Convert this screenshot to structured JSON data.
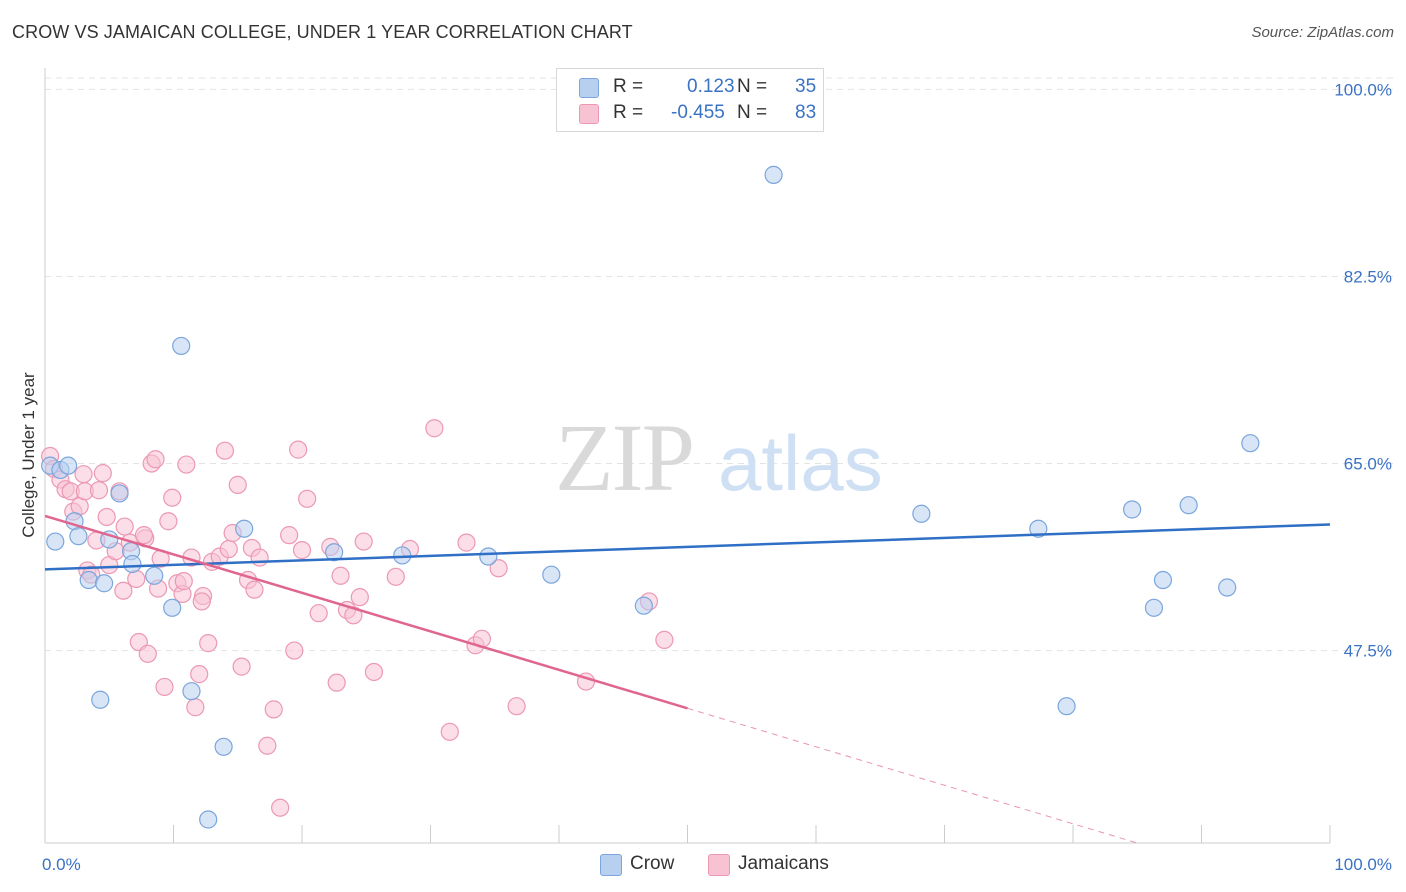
{
  "title": "CROW VS JAMAICAN COLLEGE, UNDER 1 YEAR CORRELATION CHART",
  "source": "Source: ZipAtlas.com",
  "watermark": {
    "zip": "ZIP",
    "atlas": "atlas"
  },
  "legend": {
    "rows": [
      {
        "r_label": "R =",
        "r_value": "0.123",
        "n_label": "N =",
        "n_value": "35"
      },
      {
        "r_label": "R =",
        "r_value": "-0.455",
        "n_label": "N =",
        "n_value": "83"
      }
    ]
  },
  "bottom_legend": {
    "crow": "Crow",
    "jamaicans": "Jamaicans"
  },
  "colors": {
    "crow_fill": "#b8d0f0",
    "crow_stroke": "#7aa6dc",
    "crow_line": "#2f6fc6",
    "jam_fill": "#f7c3d3",
    "jam_stroke": "#ec98b4",
    "jam_line": "#e0668f",
    "grid": "#e3e3e3",
    "tick_label": "#3a72c4"
  },
  "chart_data": {
    "type": "scatter",
    "title": "CROW VS JAMAICAN COLLEGE, UNDER 1 YEAR CORRELATION CHART",
    "xlabel": "",
    "ylabel": "College, Under 1 year",
    "xlim": [
      0,
      100
    ],
    "ylim": [
      29.5,
      102
    ],
    "x_tick_labels": [
      "0.0%",
      "100.0%"
    ],
    "y_ticks": [
      47.5,
      65.0,
      82.5,
      100.0
    ],
    "y_tick_labels": [
      "47.5%",
      "65.0%",
      "82.5%",
      "100.0%"
    ],
    "grid": true,
    "legend_position": "top-center",
    "series": [
      {
        "name": "Crow",
        "R": 0.123,
        "N": 35,
        "trend": {
          "x0": 0,
          "y0": 55.1,
          "x1": 100,
          "y1": 59.3
        },
        "points": [
          [
            0.4,
            64.8
          ],
          [
            1.2,
            64.4
          ],
          [
            1.8,
            64.8
          ],
          [
            0.8,
            57.7
          ],
          [
            2.3,
            59.6
          ],
          [
            2.6,
            58.2
          ],
          [
            3.4,
            54.1
          ],
          [
            4.6,
            53.8
          ],
          [
            5.0,
            57.9
          ],
          [
            5.8,
            62.2
          ],
          [
            6.7,
            56.8
          ],
          [
            6.8,
            55.6
          ],
          [
            8.5,
            54.5
          ],
          [
            9.9,
            51.5
          ],
          [
            10.6,
            76.0
          ],
          [
            11.4,
            43.7
          ],
          [
            12.7,
            31.7
          ],
          [
            13.9,
            38.5
          ],
          [
            15.5,
            58.9
          ],
          [
            22.5,
            56.7
          ],
          [
            27.8,
            56.4
          ],
          [
            34.5,
            56.3
          ],
          [
            39.4,
            54.6
          ],
          [
            46.6,
            51.7
          ],
          [
            56.7,
            92.0
          ],
          [
            68.2,
            60.3
          ],
          [
            77.3,
            58.9
          ],
          [
            79.5,
            42.3
          ],
          [
            84.6,
            60.7
          ],
          [
            86.3,
            51.5
          ],
          [
            87.0,
            54.1
          ],
          [
            89.0,
            61.1
          ],
          [
            92.0,
            53.4
          ],
          [
            93.8,
            66.9
          ],
          [
            4.3,
            42.9
          ]
        ]
      },
      {
        "name": "Jamaicans",
        "R": -0.455,
        "N": 83,
        "trend": {
          "x0": 0,
          "y0": 60.1,
          "x1": 50,
          "y1": 42.1
        },
        "trend_dashed_to": {
          "x": 85,
          "y": 29.5
        },
        "points": [
          [
            0.4,
            65.7
          ],
          [
            0.7,
            64.5
          ],
          [
            1.2,
            63.5
          ],
          [
            1.6,
            62.6
          ],
          [
            2.0,
            62.4
          ],
          [
            2.2,
            60.5
          ],
          [
            2.7,
            61.0
          ],
          [
            3.0,
            64.0
          ],
          [
            3.1,
            62.4
          ],
          [
            3.3,
            55.0
          ],
          [
            4.0,
            57.8
          ],
          [
            4.2,
            62.5
          ],
          [
            4.5,
            64.1
          ],
          [
            4.8,
            60.0
          ],
          [
            5.0,
            55.5
          ],
          [
            5.5,
            56.8
          ],
          [
            5.8,
            62.4
          ],
          [
            6.2,
            59.1
          ],
          [
            6.6,
            57.6
          ],
          [
            7.1,
            54.2
          ],
          [
            7.3,
            48.3
          ],
          [
            7.8,
            58.0
          ],
          [
            8.0,
            47.2
          ],
          [
            8.3,
            65.0
          ],
          [
            8.6,
            65.4
          ],
          [
            8.8,
            53.3
          ],
          [
            9.0,
            56.1
          ],
          [
            9.3,
            44.1
          ],
          [
            9.6,
            59.6
          ],
          [
            9.9,
            61.8
          ],
          [
            10.3,
            53.8
          ],
          [
            10.7,
            52.8
          ],
          [
            11.0,
            64.9
          ],
          [
            11.4,
            56.2
          ],
          [
            11.7,
            42.2
          ],
          [
            12.0,
            45.3
          ],
          [
            12.3,
            52.6
          ],
          [
            12.7,
            48.2
          ],
          [
            13.0,
            55.8
          ],
          [
            13.6,
            56.3
          ],
          [
            14.0,
            66.2
          ],
          [
            14.3,
            57.0
          ],
          [
            14.6,
            58.5
          ],
          [
            15.0,
            63.0
          ],
          [
            15.3,
            46.0
          ],
          [
            15.8,
            54.1
          ],
          [
            16.1,
            57.1
          ],
          [
            16.3,
            53.2
          ],
          [
            16.7,
            56.2
          ],
          [
            17.3,
            38.6
          ],
          [
            17.8,
            42.0
          ],
          [
            18.3,
            32.8
          ],
          [
            19.0,
            58.3
          ],
          [
            19.7,
            66.3
          ],
          [
            20.0,
            56.9
          ],
          [
            20.4,
            61.7
          ],
          [
            21.3,
            51.0
          ],
          [
            22.2,
            57.2
          ],
          [
            22.7,
            44.5
          ],
          [
            23.0,
            54.5
          ],
          [
            23.5,
            51.3
          ],
          [
            24.0,
            50.8
          ],
          [
            24.5,
            52.5
          ],
          [
            24.8,
            57.7
          ],
          [
            25.6,
            45.5
          ],
          [
            27.3,
            54.4
          ],
          [
            28.4,
            57.0
          ],
          [
            30.3,
            68.3
          ],
          [
            31.5,
            39.9
          ],
          [
            32.8,
            57.6
          ],
          [
            33.5,
            48.0
          ],
          [
            34.0,
            48.6
          ],
          [
            35.3,
            55.2
          ],
          [
            36.7,
            42.3
          ],
          [
            42.1,
            44.6
          ],
          [
            47.0,
            52.1
          ],
          [
            48.2,
            48.5
          ],
          [
            3.6,
            54.6
          ],
          [
            6.1,
            53.1
          ],
          [
            7.7,
            58.3
          ],
          [
            10.8,
            54.0
          ],
          [
            12.2,
            52.1
          ],
          [
            19.4,
            47.5
          ]
        ]
      }
    ]
  }
}
